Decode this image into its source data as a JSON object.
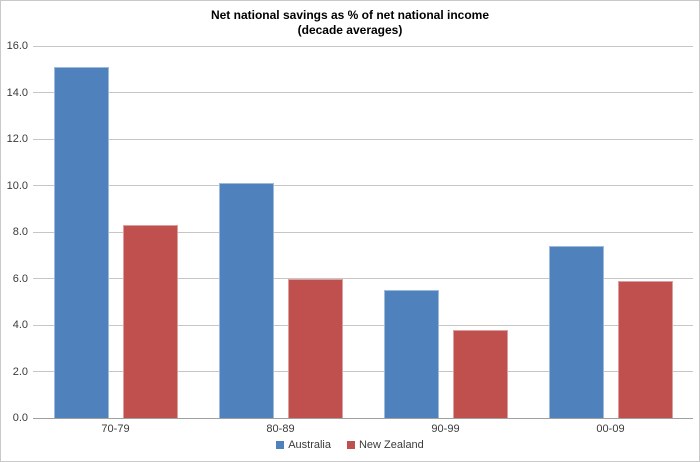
{
  "chart_data": {
    "type": "bar",
    "title": "Net national savings as % of net national income",
    "subtitle": "(decade averages)",
    "categories": [
      "70-79",
      "80-89",
      "90-99",
      "00-09"
    ],
    "series": [
      {
        "name": "Australia",
        "color": "#4F81BD",
        "values": [
          15.1,
          10.1,
          5.5,
          7.4
        ]
      },
      {
        "name": "New Zealand",
        "color": "#C0504D",
        "values": [
          8.3,
          6.0,
          3.8,
          5.9
        ]
      }
    ],
    "ylim": [
      0,
      16
    ],
    "ytick_step": 2,
    "ytick_labels": [
      "0.0",
      "2.0",
      "4.0",
      "6.0",
      "8.0",
      "10.0",
      "12.0",
      "14.0",
      "16.0"
    ],
    "grid": true,
    "legend_position": "bottom",
    "grid_color": "#C6C6C6",
    "axis_color": "#A0A0A0"
  }
}
